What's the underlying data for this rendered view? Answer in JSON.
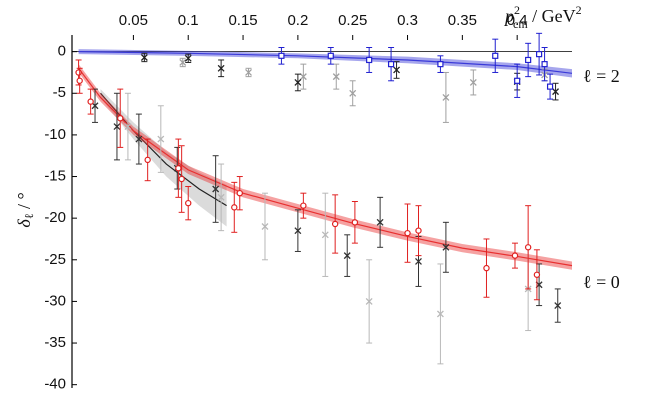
{
  "chart_data": {
    "type": "scatter",
    "x_label": {
      "base": "p",
      "sub": "cm",
      "sup": "2",
      "unit": " / GeV",
      "unit_sup": "2"
    },
    "y_label": {
      "base": "δ",
      "sub": "ℓ",
      "unit": " / °"
    },
    "annotations": [
      "ℓ = 2",
      "ℓ = 0"
    ],
    "xlim": [
      -0.006,
      0.45
    ],
    "ylim": [
      -40.4,
      2
    ],
    "xticks": [
      0.05,
      0.1,
      0.15,
      0.2,
      0.25,
      0.3,
      0.35,
      0.4
    ],
    "yticks": [
      -40,
      -35,
      -30,
      -25,
      -20,
      -15,
      -10,
      -5,
      0
    ],
    "curves": [
      {
        "color": "#b0b0b0",
        "line_color": "#222222",
        "x": [
          0.02,
          0.05,
          0.08,
          0.11,
          0.135
        ],
        "values": [
          -5,
          -9.5,
          -13.5,
          -16.5,
          -18.5
        ],
        "band": [
          0.5,
          1,
          1.5,
          2,
          2.5
        ]
      },
      {
        "color": "#e83030",
        "line_color": "#e83030",
        "x": [
          0,
          0.02,
          0.05,
          0.1,
          0.15,
          0.2,
          0.25,
          0.3,
          0.35,
          0.4,
          0.45
        ],
        "values": [
          -2,
          -5.5,
          -9.5,
          -14.2,
          -17,
          -18.8,
          -20.6,
          -22.2,
          -23.6,
          -24.6,
          -25.7
        ],
        "band": [
          0.5,
          0.5,
          0.5,
          0.5,
          0.5,
          0.5,
          0.5,
          0.5,
          0.5,
          0.5,
          0.5
        ]
      },
      {
        "color": "#3a3ad8",
        "line_color": "#3a3ad8",
        "x": [
          0,
          0.1,
          0.2,
          0.3,
          0.4,
          0.45
        ],
        "values": [
          0,
          -0.2,
          -0.5,
          -1.0,
          -1.8,
          -2.6
        ],
        "band": [
          0.3,
          0.3,
          0.3,
          0.4,
          0.4,
          0.5
        ]
      }
    ],
    "series": [
      {
        "color": "#b8b8b8",
        "marker": "x",
        "x": [
          0.045,
          0.075,
          0.13,
          0.17,
          0.225,
          0.265,
          0.33,
          0.41
        ],
        "values": [
          -9,
          -10.5,
          -17.5,
          -21,
          -22,
          -30,
          -31.5,
          -28.5
        ],
        "errors": [
          4,
          4,
          4,
          4,
          5,
          5,
          6,
          5
        ]
      },
      {
        "color": "#333333",
        "marker": "x",
        "x": [
          0.015,
          0.035,
          0.055,
          0.09,
          0.125,
          0.2,
          0.245,
          0.275,
          0.31,
          0.335,
          0.42,
          0.437
        ],
        "values": [
          -6.5,
          -9,
          -10.5,
          -14,
          -16.5,
          -21.5,
          -24.5,
          -20.5,
          -25.2,
          -23.5,
          -28,
          -30.5
        ],
        "errors": [
          2,
          4,
          3,
          2.5,
          4,
          2.5,
          2.5,
          3,
          3,
          3,
          2.5,
          2
        ]
      },
      {
        "color": "#e02020",
        "marker": "circle",
        "x": [
          0,
          0.001,
          0.011,
          0.038,
          0.063,
          0.091,
          0.094,
          0.1,
          0.142,
          0.147,
          0.205,
          0.234,
          0.252,
          0.3,
          0.31,
          0.372,
          0.398,
          0.41,
          0.418
        ],
        "values": [
          -2.5,
          -3.5,
          -6,
          -8,
          -13,
          -14,
          -15.3,
          -18.2,
          -18.7,
          -17,
          -18.5,
          -20.7,
          -20.5,
          -21.8,
          -21.5,
          -26,
          -24.5,
          -23.5,
          -26.8
        ],
        "errors": [
          1.5,
          1.5,
          1.5,
          3.5,
          2.5,
          3.5,
          4,
          2,
          3,
          2,
          1.5,
          3.5,
          2.5,
          3.5,
          3,
          3.5,
          1.5,
          5,
          3
        ]
      },
      {
        "color": "#a0a0a0",
        "marker": "x",
        "x": [
          0.095,
          0.155,
          0.205,
          0.235,
          0.25,
          0.335,
          0.36,
          0.425
        ],
        "values": [
          -1.3,
          -2.5,
          -3,
          -3,
          -5,
          -5.5,
          -3.7,
          -2.8
        ],
        "errors": [
          0.5,
          0.5,
          1.5,
          1.5,
          1.5,
          3,
          1.5,
          0.7
        ]
      },
      {
        "color": "#222222",
        "marker": "x",
        "x": [
          0.06,
          0.1,
          0.13,
          0.2,
          0.29,
          0.4,
          0.435
        ],
        "values": [
          -0.7,
          -0.8,
          -2,
          -3.7,
          -2.2,
          -3.6,
          -4.8
        ],
        "errors": [
          0.5,
          0.5,
          1,
          1,
          1,
          1,
          1
        ]
      },
      {
        "color": "#2020d0",
        "marker": "square",
        "x": [
          0.185,
          0.23,
          0.265,
          0.285,
          0.33,
          0.38,
          0.4,
          0.41,
          0.42,
          0.425,
          0.43
        ],
        "values": [
          -0.5,
          -0.5,
          -1,
          -1.5,
          -1.5,
          -0.5,
          -3.5,
          -1,
          -0.3,
          -1.5,
          -4.2
        ],
        "errors": [
          1,
          1,
          1.5,
          2,
          1,
          2,
          2,
          2,
          2.5,
          2,
          1.5
        ]
      }
    ]
  }
}
